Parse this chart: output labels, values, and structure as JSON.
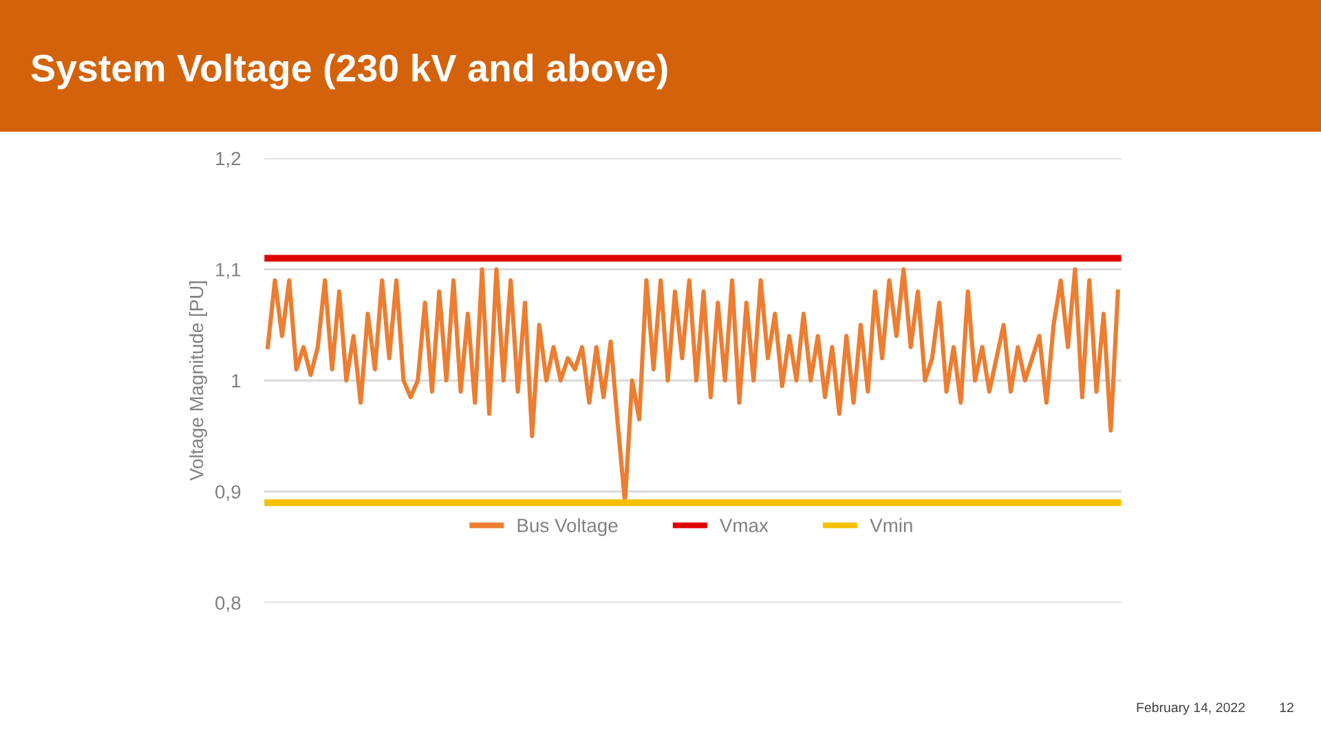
{
  "chart_data": {
    "type": "line",
    "title": "System Voltage (230 kV and above)",
    "ylabel": "Voltage Magnitude [PU]",
    "categories": [
      null,
      null,
      null,
      null,
      null,
      null,
      null,
      null,
      null,
      null,
      null,
      null,
      null,
      null,
      null,
      null,
      null,
      null,
      null,
      null,
      null,
      null,
      null,
      null,
      null,
      null,
      null,
      null,
      null,
      null,
      null,
      null,
      null,
      null,
      null,
      null,
      null,
      null,
      null,
      null,
      null,
      null,
      null,
      null,
      null,
      null,
      null,
      null,
      null,
      null,
      null,
      null,
      null,
      null,
      null,
      null,
      null,
      null,
      null,
      null,
      null,
      null,
      null,
      null,
      null,
      null,
      null,
      null,
      null,
      null,
      null,
      null,
      null,
      null,
      null,
      null,
      null,
      null,
      null,
      null,
      null,
      null,
      null,
      null,
      null,
      null,
      null,
      null,
      null,
      null,
      null,
      null,
      null,
      null,
      null,
      null,
      null,
      null,
      null,
      null,
      null,
      null,
      null,
      null,
      null,
      null,
      null,
      null,
      null,
      null,
      null,
      null,
      null,
      null,
      null,
      null,
      null,
      null,
      null,
      null
    ],
    "series": [
      {
        "name": "Bus Voltage",
        "color": "#ed7d31",
        "values": [
          1.03,
          1.09,
          1.04,
          1.09,
          1.01,
          1.03,
          1.005,
          1.03,
          1.09,
          1.01,
          1.08,
          1.0,
          1.04,
          0.98,
          1.06,
          1.01,
          1.09,
          1.02,
          1.09,
          1.0,
          0.985,
          1.0,
          1.07,
          0.99,
          1.08,
          1.0,
          1.09,
          0.99,
          1.06,
          0.98,
          1.1,
          0.97,
          1.1,
          1.0,
          1.09,
          0.99,
          1.07,
          0.95,
          1.05,
          1.0,
          1.03,
          1.0,
          1.02,
          1.01,
          1.03,
          0.98,
          1.03,
          0.985,
          1.035,
          0.96,
          0.89,
          1.0,
          0.965,
          1.09,
          1.01,
          1.09,
          1.0,
          1.08,
          1.02,
          1.09,
          1.0,
          1.08,
          0.985,
          1.07,
          1.0,
          1.09,
          0.98,
          1.07,
          1.0,
          1.09,
          1.02,
          1.06,
          0.995,
          1.04,
          1.0,
          1.06,
          1.0,
          1.04,
          0.985,
          1.03,
          0.97,
          1.04,
          0.98,
          1.05,
          0.99,
          1.08,
          1.02,
          1.09,
          1.04,
          1.1,
          1.03,
          1.08,
          1.0,
          1.02,
          1.07,
          0.99,
          1.03,
          0.98,
          1.08,
          1.0,
          1.03,
          0.99,
          1.02,
          1.05,
          0.99,
          1.03,
          1.0,
          1.02,
          1.04,
          0.98,
          1.05,
          1.09,
          1.03,
          1.1,
          0.985,
          1.09,
          0.99,
          1.06,
          0.955,
          1.08
        ]
      },
      {
        "name": "Vmax",
        "color": "#e00000",
        "values": [
          1.11,
          1.11,
          1.11,
          1.11,
          1.11,
          1.11,
          1.11,
          1.11,
          1.11,
          1.11,
          1.11,
          1.11,
          1.11,
          1.11,
          1.11,
          1.11,
          1.11,
          1.11,
          1.11,
          1.11,
          1.11,
          1.11,
          1.11,
          1.11,
          1.11,
          1.11,
          1.11,
          1.11,
          1.11,
          1.11,
          1.11,
          1.11,
          1.11,
          1.11,
          1.11,
          1.11,
          1.11,
          1.11,
          1.11,
          1.11,
          1.11,
          1.11,
          1.11,
          1.11,
          1.11,
          1.11,
          1.11,
          1.11,
          1.11,
          1.11,
          1.11,
          1.11,
          1.11,
          1.11,
          1.11,
          1.11,
          1.11,
          1.11,
          1.11,
          1.11,
          1.11,
          1.11,
          1.11,
          1.11,
          1.11,
          1.11,
          1.11,
          1.11,
          1.11,
          1.11,
          1.11,
          1.11,
          1.11,
          1.11,
          1.11,
          1.11,
          1.11,
          1.11,
          1.11,
          1.11,
          1.11,
          1.11,
          1.11,
          1.11,
          1.11,
          1.11,
          1.11,
          1.11,
          1.11,
          1.11,
          1.11,
          1.11,
          1.11,
          1.11,
          1.11,
          1.11,
          1.11,
          1.11,
          1.11,
          1.11,
          1.11,
          1.11,
          1.11,
          1.11,
          1.11,
          1.11,
          1.11,
          1.11,
          1.11,
          1.11,
          1.11,
          1.11,
          1.11,
          1.11,
          1.11,
          1.11,
          1.11,
          1.11,
          1.11,
          1.11
        ]
      },
      {
        "name": "Vmin",
        "color": "#f5c000",
        "values": [
          0.89,
          0.89,
          0.89,
          0.89,
          0.89,
          0.89,
          0.89,
          0.89,
          0.89,
          0.89,
          0.89,
          0.89,
          0.89,
          0.89,
          0.89,
          0.89,
          0.89,
          0.89,
          0.89,
          0.89,
          0.89,
          0.89,
          0.89,
          0.89,
          0.89,
          0.89,
          0.89,
          0.89,
          0.89,
          0.89,
          0.89,
          0.89,
          0.89,
          0.89,
          0.89,
          0.89,
          0.89,
          0.89,
          0.89,
          0.89,
          0.89,
          0.89,
          0.89,
          0.89,
          0.89,
          0.89,
          0.89,
          0.89,
          0.89,
          0.89,
          0.89,
          0.89,
          0.89,
          0.89,
          0.89,
          0.89,
          0.89,
          0.89,
          0.89,
          0.89,
          0.89,
          0.89,
          0.89,
          0.89,
          0.89,
          0.89,
          0.89,
          0.89,
          0.89,
          0.89,
          0.89,
          0.89,
          0.89,
          0.89,
          0.89,
          0.89,
          0.89,
          0.89,
          0.89,
          0.89,
          0.89,
          0.89,
          0.89,
          0.89,
          0.89,
          0.89,
          0.89,
          0.89,
          0.89,
          0.89,
          0.89,
          0.89,
          0.89,
          0.89,
          0.89,
          0.89,
          0.89,
          0.89,
          0.89,
          0.89,
          0.89,
          0.89,
          0.89,
          0.89,
          0.89,
          0.89,
          0.89,
          0.89,
          0.89,
          0.89,
          0.89,
          0.89,
          0.89,
          0.89,
          0.89,
          0.89,
          0.89,
          0.89,
          0.89,
          0.89
        ]
      }
    ],
    "ylim": [
      0.8,
      1.2
    ],
    "yticks": [
      {
        "value": 0.8,
        "label": "0,8"
      },
      {
        "value": 0.9,
        "label": "0,9"
      },
      {
        "value": 1,
        "label": "1"
      },
      {
        "value": 1.1,
        "label": "1,1"
      },
      {
        "value": 1.2,
        "label": "1,2"
      }
    ],
    "grid": "y",
    "legend": "center",
    "tick_labels": "y",
    "marker": "none",
    "line_style": "solid",
    "annotations": [
      "February 14, 2022",
      "12"
    ]
  }
}
